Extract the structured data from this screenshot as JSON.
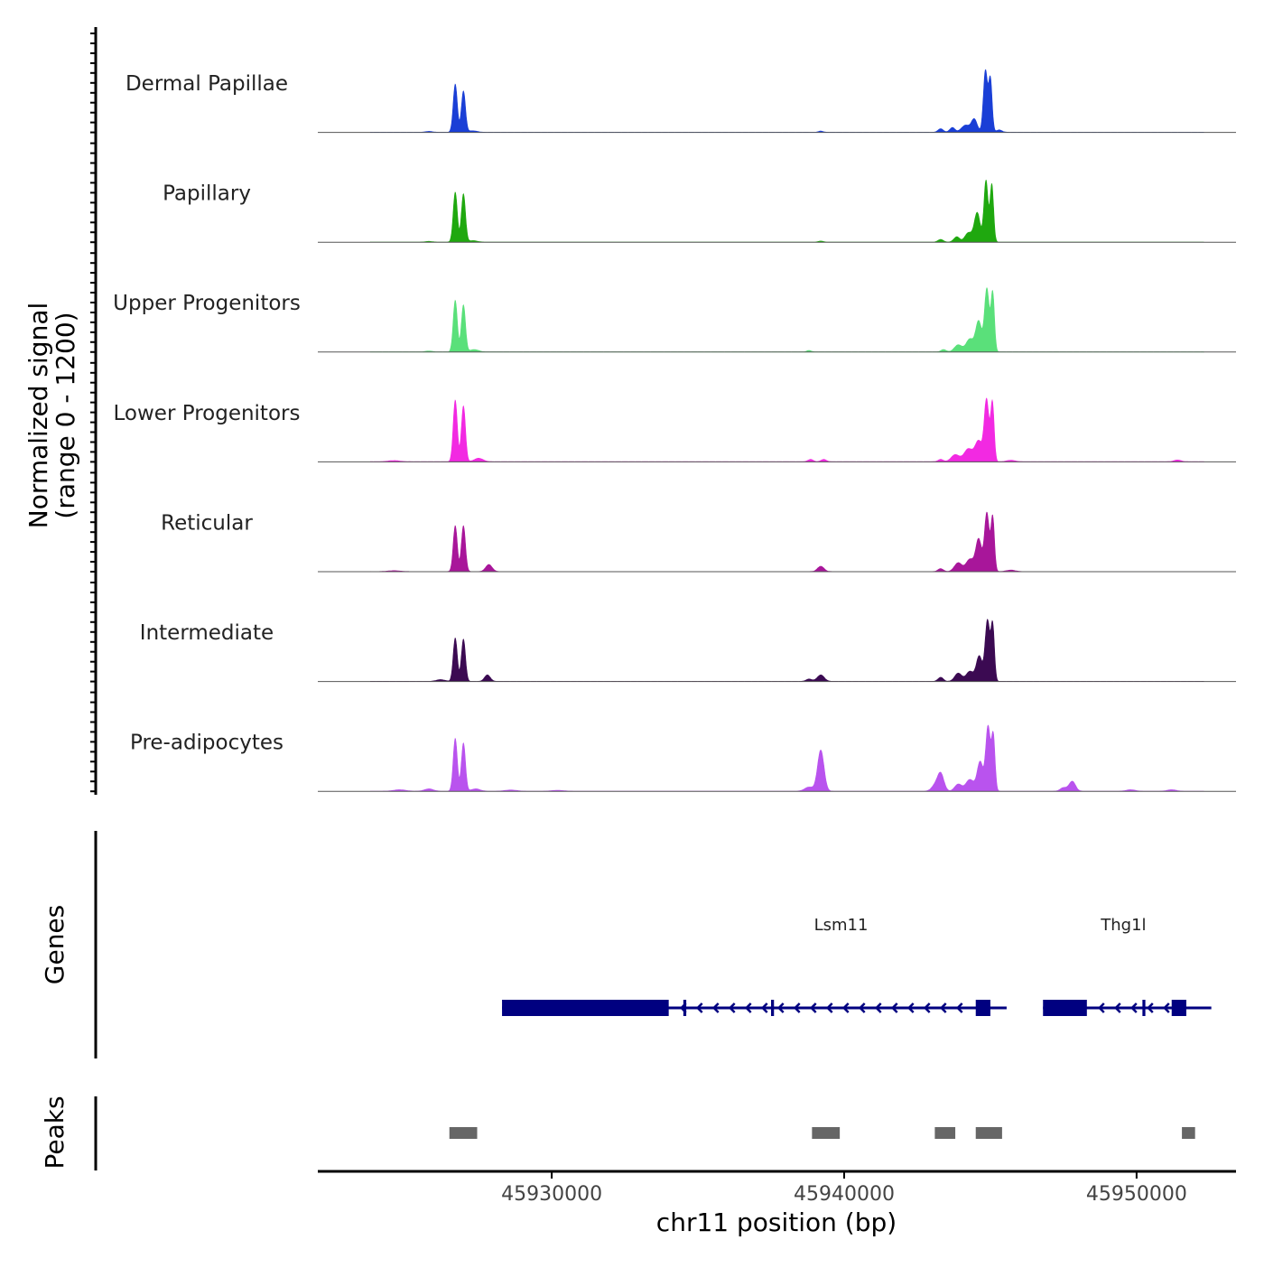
{
  "chart_data": {
    "type": "area",
    "ylabel": "Normalized signal",
    "ylabel_range": "(range 0 - 1200)",
    "ylim": [
      0,
      1200
    ],
    "xlabel": "chr11 position (bp)",
    "xlim": [
      45922000,
      45953400
    ],
    "x_ticks": [
      45930000,
      45940000,
      45950000
    ],
    "x_tick_labels": [
      "45930000",
      "45940000",
      "45950000"
    ],
    "tracks": [
      {
        "name": "Dermal Papillae",
        "color": "#1a3fd6",
        "peaks": [
          [
            45926700,
            820,
            70
          ],
          [
            45926980,
            700,
            70
          ],
          [
            45927300,
            25,
            150
          ],
          [
            45943300,
            60,
            90
          ],
          [
            45943700,
            80,
            90
          ],
          [
            45944150,
            120,
            140
          ],
          [
            45944450,
            220,
            100
          ],
          [
            45944830,
            1050,
            70
          ],
          [
            45945000,
            900,
            60
          ],
          [
            45945300,
            40,
            100
          ],
          [
            45939200,
            20,
            80
          ],
          [
            45925800,
            15,
            120
          ]
        ]
      },
      {
        "name": "Papillary",
        "color": "#1fa80f",
        "peaks": [
          [
            45926700,
            850,
            70
          ],
          [
            45926980,
            820,
            70
          ],
          [
            45927300,
            25,
            150
          ],
          [
            45943300,
            45,
            90
          ],
          [
            45943850,
            90,
            100
          ],
          [
            45944250,
            160,
            120
          ],
          [
            45944550,
            500,
            100
          ],
          [
            45944850,
            1050,
            70
          ],
          [
            45945050,
            980,
            60
          ],
          [
            45939200,
            18,
            80
          ],
          [
            45925800,
            12,
            120
          ]
        ]
      },
      {
        "name": "Upper Progenitors",
        "color": "#5ae07a",
        "peaks": [
          [
            45926700,
            880,
            70
          ],
          [
            45926980,
            800,
            70
          ],
          [
            45927350,
            40,
            150
          ],
          [
            45943400,
            40,
            90
          ],
          [
            45943900,
            120,
            130
          ],
          [
            45944300,
            220,
            130
          ],
          [
            45944600,
            520,
            100
          ],
          [
            45944880,
            1080,
            80
          ],
          [
            45945080,
            1000,
            60
          ],
          [
            45938800,
            25,
            80
          ],
          [
            45925800,
            15,
            120
          ]
        ]
      },
      {
        "name": "Lower Progenitors",
        "color": "#f229e2",
        "peaks": [
          [
            45926700,
            1050,
            70
          ],
          [
            45926980,
            950,
            70
          ],
          [
            45927500,
            60,
            150
          ],
          [
            45924600,
            20,
            200
          ],
          [
            45938850,
            40,
            90
          ],
          [
            45939300,
            40,
            90
          ],
          [
            45943300,
            40,
            90
          ],
          [
            45943800,
            120,
            140
          ],
          [
            45944250,
            220,
            150
          ],
          [
            45944600,
            350,
            120
          ],
          [
            45944870,
            1050,
            80
          ],
          [
            45945070,
            1000,
            60
          ],
          [
            45945700,
            25,
            150
          ],
          [
            45951400,
            30,
            120
          ]
        ]
      },
      {
        "name": "Reticular",
        "color": "#a8169a",
        "peaks": [
          [
            45926700,
            780,
            70
          ],
          [
            45926980,
            780,
            70
          ],
          [
            45927850,
            120,
            110
          ],
          [
            45924600,
            15,
            200
          ],
          [
            45939200,
            90,
            110
          ],
          [
            45943300,
            50,
            90
          ],
          [
            45943900,
            150,
            130
          ],
          [
            45944300,
            210,
            130
          ],
          [
            45944600,
            550,
            100
          ],
          [
            45944880,
            1000,
            80
          ],
          [
            45945080,
            920,
            60
          ],
          [
            45945700,
            25,
            150
          ]
        ]
      },
      {
        "name": "Intermediate",
        "color": "#3b0a52",
        "peaks": [
          [
            45926700,
            740,
            70
          ],
          [
            45926980,
            720,
            70
          ],
          [
            45927800,
            110,
            100
          ],
          [
            45926200,
            30,
            150
          ],
          [
            45939200,
            110,
            120
          ],
          [
            45938800,
            40,
            100
          ],
          [
            45943300,
            70,
            90
          ],
          [
            45943900,
            140,
            120
          ],
          [
            45944300,
            170,
            130
          ],
          [
            45944620,
            430,
            100
          ],
          [
            45944900,
            1040,
            80
          ],
          [
            45945080,
            940,
            60
          ]
        ]
      },
      {
        "name": "Pre-adipocytes",
        "color": "#b953ee",
        "peaks": [
          [
            45926700,
            900,
            70
          ],
          [
            45926980,
            820,
            70
          ],
          [
            45927400,
            40,
            150
          ],
          [
            45924800,
            25,
            200
          ],
          [
            45925800,
            40,
            150
          ],
          [
            45928600,
            20,
            200
          ],
          [
            45930200,
            15,
            200
          ],
          [
            45938800,
            70,
            150
          ],
          [
            45939200,
            700,
            110
          ],
          [
            45943300,
            300,
            110
          ],
          [
            45943100,
            90,
            120
          ],
          [
            45943900,
            120,
            120
          ],
          [
            45944300,
            200,
            140
          ],
          [
            45944650,
            500,
            100
          ],
          [
            45944920,
            1100,
            80
          ],
          [
            45945100,
            920,
            60
          ],
          [
            45947500,
            60,
            110
          ],
          [
            45947800,
            170,
            110
          ],
          [
            45949800,
            25,
            150
          ],
          [
            45951200,
            25,
            150
          ]
        ]
      }
    ],
    "genes_label": "Genes",
    "genes": [
      {
        "name": "Lsm11",
        "start": 45928300,
        "end": 45945000,
        "strand": "-",
        "thick": [
          [
            45928300,
            45934000
          ],
          [
            45944500,
            45945000
          ]
        ],
        "exons": [
          [
            45934500,
            45934600
          ],
          [
            45937500,
            45937600
          ]
        ]
      },
      {
        "name": "Thg1l",
        "start": 45946800,
        "end": 45952000,
        "strand": "-",
        "thick": [
          [
            45946800,
            45948300
          ],
          [
            45951200,
            45951700
          ]
        ],
        "exons": [
          [
            45950200,
            45950300
          ]
        ]
      }
    ],
    "peaks_label": "Peaks",
    "peak_regions": [
      [
        45926500,
        45927450
      ],
      [
        45938900,
        45939850
      ],
      [
        45943100,
        45943800
      ],
      [
        45944500,
        45945400
      ],
      [
        45951550,
        45952000
      ]
    ]
  }
}
